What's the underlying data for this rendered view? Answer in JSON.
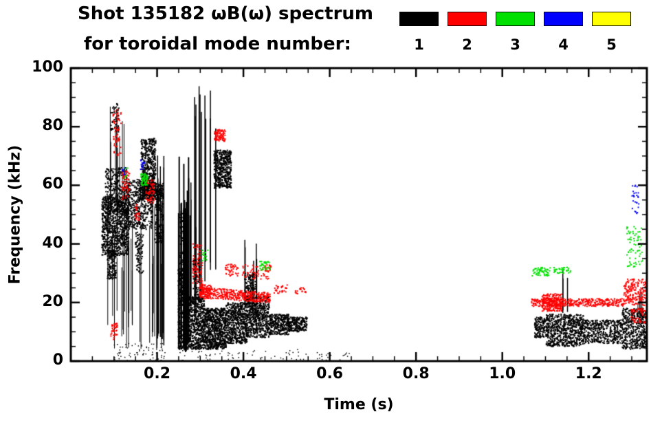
{
  "title": {
    "line1": "Shot 135182 ωB(ω) spectrum",
    "line2": "for toroidal mode number:"
  },
  "legend": {
    "modes": [
      {
        "label": "1",
        "color": "#000000"
      },
      {
        "label": "2",
        "color": "#ff0000"
      },
      {
        "label": "3",
        "color": "#00e000"
      },
      {
        "label": "4",
        "color": "#0000ff"
      },
      {
        "label": "5",
        "color": "#ffff00"
      }
    ]
  },
  "axes": {
    "x": {
      "label": "Time (s)",
      "min": 0,
      "max": 1.335,
      "minor_step": 0.05,
      "major_ticks": [
        0.2,
        0.4,
        0.6,
        0.8,
        1.0,
        1.2
      ],
      "tick_labels": [
        "0.2",
        "0.4",
        "0.6",
        "0.8",
        "1.0",
        "1.2"
      ]
    },
    "y": {
      "label": "Frequency (kHz)",
      "min": 0,
      "max": 100,
      "minor_step": 5,
      "major_ticks": [
        0,
        20,
        40,
        60,
        80,
        100
      ],
      "tick_labels": [
        "0",
        "20",
        "40",
        "60",
        "80",
        "100"
      ]
    }
  },
  "chart_data": {
    "type": "scatter",
    "title": "Shot 135182 ωB(ω) spectrum for toroidal mode number 1-5",
    "xlabel": "Time (s)",
    "ylabel": "Frequency (kHz)",
    "xlim": [
      0,
      1.335
    ],
    "ylim": [
      0,
      100
    ],
    "legend_position": "top",
    "grid": false,
    "series": [
      {
        "name": "n=1",
        "color": "#000000",
        "clusters": [
          {
            "type": "box",
            "t": [
              0.072,
              0.135
            ],
            "f": [
              36,
              56
            ],
            "n": 900,
            "s": 2
          },
          {
            "type": "box",
            "t": [
              0.08,
              0.13
            ],
            "f": [
              50,
              66
            ],
            "n": 300,
            "s": 2
          },
          {
            "type": "box",
            "t": [
              0.085,
              0.105
            ],
            "f": [
              28,
              38
            ],
            "n": 150,
            "s": 2
          },
          {
            "type": "vlines",
            "t": [
              0.09,
              0.125
            ],
            "base": [
              40,
              55
            ],
            "top": [
              70,
              88
            ],
            "m": 10,
            "w": 1
          },
          {
            "type": "box",
            "t": [
              0.093,
              0.112
            ],
            "f": [
              78,
              88
            ],
            "n": 50,
            "s": 2
          },
          {
            "type": "box",
            "t": [
              0.125,
              0.19
            ],
            "f": [
              45,
              62
            ],
            "n": 550,
            "s": 2
          },
          {
            "type": "vlines",
            "t": [
              0.08,
              0.22
            ],
            "base": [
              3,
              18
            ],
            "top": [
              30,
              58
            ],
            "m": 26,
            "w": 1
          },
          {
            "type": "box",
            "t": [
              0.15,
              0.168
            ],
            "f": [
              30,
              44
            ],
            "n": 90,
            "s": 2
          },
          {
            "type": "box",
            "t": [
              0.163,
              0.197
            ],
            "f": [
              56,
              76
            ],
            "n": 500,
            "s": 2
          },
          {
            "type": "box",
            "t": [
              0.16,
              0.215
            ],
            "f": [
              55,
              61
            ],
            "n": 200,
            "s": 2
          },
          {
            "type": "vlines",
            "t": [
              0.185,
              0.218
            ],
            "base": [
              4,
              10
            ],
            "top": [
              45,
              72
            ],
            "m": 9,
            "w": 1.5
          },
          {
            "type": "box",
            "t": [
              0.195,
              0.215
            ],
            "f": [
              40,
              60
            ],
            "n": 150,
            "s": 2
          },
          {
            "type": "vlines",
            "t": [
              0.248,
              0.272
            ],
            "base": [
              3,
              8
            ],
            "top": [
              50,
              72
            ],
            "m": 16,
            "w": 2
          },
          {
            "type": "box",
            "t": [
              0.249,
              0.272
            ],
            "f": [
              4,
              32
            ],
            "n": 450,
            "s": 2
          },
          {
            "type": "box",
            "t": [
              0.252,
              0.27
            ],
            "f": [
              32,
              52
            ],
            "n": 100,
            "s": 2
          },
          {
            "type": "vlines",
            "t": [
              0.275,
              0.29
            ],
            "base": [
              18,
              25
            ],
            "top": [
              45,
              65
            ],
            "m": 4,
            "w": 1.5
          },
          {
            "type": "box",
            "t": [
              0.283,
              0.3
            ],
            "f": [
              22,
              35
            ],
            "n": 80,
            "s": 2
          },
          {
            "type": "vlines",
            "t": [
              0.285,
              0.338
            ],
            "base": [
              15,
              35
            ],
            "top": [
              78,
              95
            ],
            "m": 8,
            "w": 1.5
          },
          {
            "type": "vlines",
            "t": [
              0.296,
              0.318
            ],
            "base": [
              20,
              32
            ],
            "top": [
              88,
              95
            ],
            "m": 3,
            "w": 1.5
          },
          {
            "type": "box",
            "t": [
              0.27,
              0.31
            ],
            "f": [
              4,
              22
            ],
            "n": 650,
            "s": 2
          },
          {
            "type": "box",
            "t": [
              0.31,
              0.36
            ],
            "f": [
              4,
              18
            ],
            "n": 800,
            "s": 2
          },
          {
            "type": "box",
            "t": [
              0.36,
              0.41
            ],
            "f": [
              6,
              20
            ],
            "n": 650,
            "s": 2
          },
          {
            "type": "box",
            "t": [
              0.41,
              0.46
            ],
            "f": [
              8,
              22
            ],
            "n": 550,
            "s": 2
          },
          {
            "type": "box",
            "t": [
              0.46,
              0.505
            ],
            "f": [
              9,
              16
            ],
            "n": 330,
            "s": 2
          },
          {
            "type": "box",
            "t": [
              0.505,
              0.548
            ],
            "f": [
              10,
              15
            ],
            "n": 220,
            "s": 2
          },
          {
            "type": "box",
            "t": [
              0.332,
              0.372
            ],
            "f": [
              59,
              72
            ],
            "n": 520,
            "s": 2
          },
          {
            "type": "vlines",
            "t": [
              0.4,
              0.432
            ],
            "base": [
              16,
              20
            ],
            "top": [
              30,
              46
            ],
            "m": 6,
            "w": 1.5
          },
          {
            "type": "box",
            "t": [
              0.403,
              0.428
            ],
            "f": [
              18,
              30
            ],
            "n": 160,
            "s": 2
          },
          {
            "type": "box",
            "t": [
              0.56,
              0.66
            ],
            "f": [
              0,
              3
            ],
            "n": 20,
            "s": 1.5
          },
          {
            "type": "box",
            "t": [
              0.1,
              0.22
            ],
            "f": [
              0,
              6
            ],
            "n": 70,
            "s": 1.5
          },
          {
            "type": "box",
            "t": [
              0.25,
              0.55
            ],
            "f": [
              0,
              4
            ],
            "n": 60,
            "s": 1.5
          },
          {
            "type": "box",
            "t": [
              1.075,
              1.102
            ],
            "f": [
              8,
              15
            ],
            "n": 140,
            "s": 2
          },
          {
            "type": "box",
            "t": [
              1.102,
              1.188
            ],
            "f": [
              5,
              16
            ],
            "n": 700,
            "s": 2
          },
          {
            "type": "vlines",
            "t": [
              1.138,
              1.152
            ],
            "base": [
              16,
              18
            ],
            "top": [
              26,
              32
            ],
            "m": 3,
            "w": 1.5
          },
          {
            "type": "box",
            "t": [
              1.188,
              1.278
            ],
            "f": [
              6,
              14
            ],
            "n": 450,
            "s": 2
          },
          {
            "type": "box",
            "t": [
              1.278,
              1.335
            ],
            "f": [
              4,
              18
            ],
            "n": 480,
            "s": 2
          },
          {
            "type": "vlines",
            "t": [
              1.295,
              1.33
            ],
            "base": [
              14,
              16
            ],
            "top": [
              20,
              27
            ],
            "m": 4,
            "w": 1
          }
        ]
      },
      {
        "name": "n=2",
        "color": "#ff0000",
        "clusters": [
          {
            "type": "box",
            "t": [
              0.093,
              0.108
            ],
            "f": [
              7,
              13
            ],
            "n": 40,
            "s": 2
          },
          {
            "type": "box",
            "t": [
              0.098,
              0.118
            ],
            "f": [
              70,
              86
            ],
            "n": 60,
            "s": 2
          },
          {
            "type": "box",
            "t": [
              0.118,
              0.136
            ],
            "f": [
              55,
              65
            ],
            "n": 60,
            "s": 2
          },
          {
            "type": "box",
            "t": [
              0.148,
              0.16
            ],
            "f": [
              48,
              54
            ],
            "n": 25,
            "s": 2
          },
          {
            "type": "box",
            "t": [
              0.173,
              0.195
            ],
            "f": [
              54,
              62
            ],
            "n": 60,
            "s": 2
          },
          {
            "type": "box",
            "t": [
              0.282,
              0.305
            ],
            "f": [
              26,
              40
            ],
            "n": 80,
            "s": 2
          },
          {
            "type": "band",
            "t": [
              0.298,
              0.462
            ],
            "f": [
              23.5,
              21.5
            ],
            "jitter": 1.8,
            "n": 430,
            "s": 2
          },
          {
            "type": "box",
            "t": [
              0.3,
              0.325
            ],
            "f": [
              21,
              26
            ],
            "n": 80,
            "s": 2
          },
          {
            "type": "box",
            "t": [
              0.333,
              0.358
            ],
            "f": [
              75,
              79
            ],
            "n": 90,
            "s": 2
          },
          {
            "type": "box",
            "t": [
              0.358,
              0.388
            ],
            "f": [
              29,
              33
            ],
            "n": 45,
            "s": 2
          },
          {
            "type": "box",
            "t": [
              0.398,
              0.465
            ],
            "f": [
              28,
              33
            ],
            "n": 70,
            "s": 2
          },
          {
            "type": "box",
            "t": [
              0.468,
              0.502
            ],
            "f": [
              23,
              26
            ],
            "n": 30,
            "s": 2
          },
          {
            "type": "box",
            "t": [
              0.518,
              0.545
            ],
            "f": [
              23,
              25
            ],
            "n": 18,
            "s": 2
          },
          {
            "type": "band",
            "t": [
              1.068,
              1.282
            ],
            "f": [
              20,
              20
            ],
            "jitter": 1.3,
            "n": 400,
            "s": 2
          },
          {
            "type": "box",
            "t": [
              1.092,
              1.138
            ],
            "f": [
              17,
              23
            ],
            "n": 220,
            "s": 2
          },
          {
            "type": "box",
            "t": [
              1.282,
              1.335
            ],
            "f": [
              19,
              28
            ],
            "n": 200,
            "s": 2
          },
          {
            "type": "box",
            "t": [
              1.298,
              1.332
            ],
            "f": [
              13,
              18
            ],
            "n": 60,
            "s": 2
          }
        ]
      },
      {
        "name": "n=3",
        "color": "#00e000",
        "clusters": [
          {
            "type": "box",
            "t": [
              0.122,
              0.132
            ],
            "f": [
              62,
              66
            ],
            "n": 10,
            "s": 2
          },
          {
            "type": "box",
            "t": [
              0.163,
              0.178
            ],
            "f": [
              60,
              64
            ],
            "n": 60,
            "s": 2
          },
          {
            "type": "box",
            "t": [
              0.305,
              0.318
            ],
            "f": [
              34,
              38
            ],
            "n": 14,
            "s": 2
          },
          {
            "type": "box",
            "t": [
              0.438,
              0.463
            ],
            "f": [
              31,
              34
            ],
            "n": 35,
            "s": 2
          },
          {
            "type": "box",
            "t": [
              1.068,
              1.112
            ],
            "f": [
              29,
              32
            ],
            "n": 60,
            "s": 2
          },
          {
            "type": "box",
            "t": [
              1.118,
              1.158
            ],
            "f": [
              30,
              32
            ],
            "n": 40,
            "s": 2
          },
          {
            "type": "box",
            "t": [
              1.288,
              1.325
            ],
            "f": [
              32,
              46
            ],
            "n": 70,
            "s": 2
          }
        ]
      },
      {
        "name": "n=4",
        "color": "#0000ff",
        "clusters": [
          {
            "type": "box",
            "t": [
              0.118,
              0.126
            ],
            "f": [
              63,
              66
            ],
            "n": 8,
            "s": 2
          },
          {
            "type": "box",
            "t": [
              0.161,
              0.172
            ],
            "f": [
              65,
              69
            ],
            "n": 14,
            "s": 2
          },
          {
            "type": "box",
            "t": [
              1.3,
              1.318
            ],
            "f": [
              50,
              60
            ],
            "n": 26,
            "s": 2
          }
        ]
      },
      {
        "name": "n=5",
        "color": "#ffff00",
        "clusters": []
      }
    ]
  }
}
